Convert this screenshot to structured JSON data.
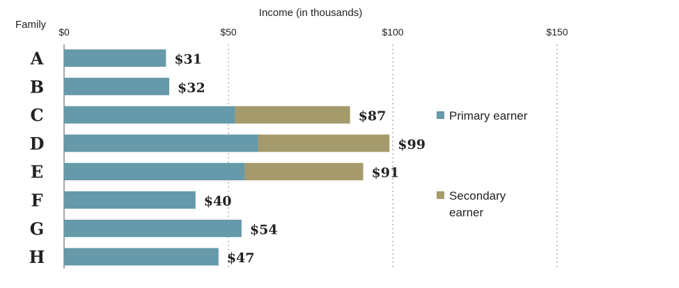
{
  "chart_data": {
    "type": "bar",
    "orientation": "horizontal",
    "stacked": true,
    "title": "",
    "xlabel": "Income (in thousands)",
    "ylabel": "Family",
    "x_axis_position": "top",
    "xlim": [
      0,
      150
    ],
    "xticks": [
      0,
      50,
      100,
      150
    ],
    "xtick_labels": [
      "$0",
      "$50",
      "$100",
      "$150"
    ],
    "grid": "vertical dotted",
    "legend_position": "right",
    "categories": [
      "A",
      "B",
      "C",
      "D",
      "E",
      "F",
      "G",
      "H"
    ],
    "series": [
      {
        "name": "Primary earner",
        "color": "#6699aa",
        "values": [
          31,
          32,
          52,
          59,
          55,
          40,
          54,
          47
        ]
      },
      {
        "name": "Secondary earner",
        "color": "#a59a6b",
        "values": [
          0,
          0,
          35,
          40,
          36,
          0,
          0,
          0
        ]
      }
    ],
    "totals": [
      31,
      32,
      87,
      99,
      91,
      40,
      54,
      47
    ],
    "total_labels": [
      "$31",
      "$32",
      "$87",
      "$99",
      "$91",
      "$40",
      "$54",
      "$47"
    ]
  }
}
